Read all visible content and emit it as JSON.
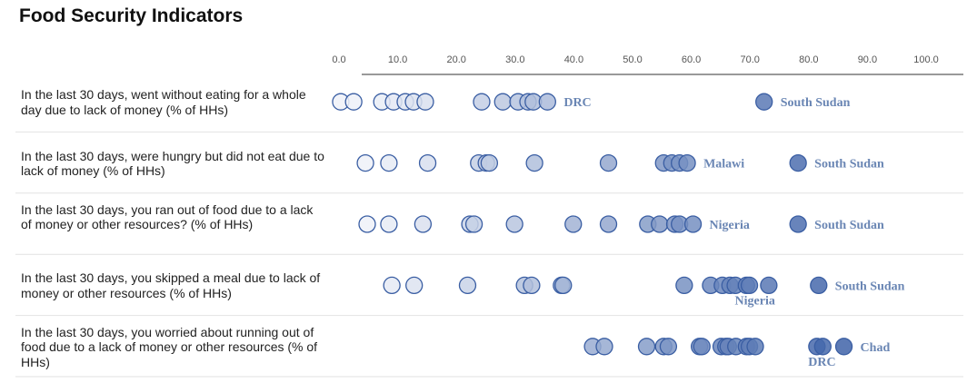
{
  "chart_data": {
    "type": "scatter",
    "title": "Food Security Indicators",
    "xlim": [
      0,
      100
    ],
    "ticks": [
      "0.0",
      "10.0",
      "20.0",
      "30.0",
      "40.0",
      "50.0",
      "60.0",
      "70.0",
      "80.0",
      "90.0",
      "100.0"
    ],
    "tick_values": [
      0,
      10,
      20,
      30,
      40,
      50,
      60,
      70,
      80,
      90,
      100
    ],
    "color_scale": {
      "low": "#eef1f8",
      "high": "#3f63a8",
      "stroke": "#3a5ea3"
    },
    "rows": [
      {
        "label": "In the last 30 days, went without eating for a whole day due to lack of money (% of HHs)",
        "values": [
          0.3,
          2.5,
          7.3,
          9.3,
          11.3,
          12.7,
          14.7,
          24.3,
          27.9,
          30.5,
          32.2,
          33.1,
          35.5,
          72.4
        ],
        "annotations": [
          {
            "text": "DRC",
            "x": 35.5
          },
          {
            "text": "South Sudan",
            "x": 72.4
          }
        ]
      },
      {
        "label": "In the last 30 days, were hungry but did not eat due to lack of money (% of HHs)",
        "values": [
          4.5,
          8.5,
          15.1,
          23.8,
          25.1,
          25.6,
          33.3,
          45.9,
          55.3,
          56.7,
          58.0,
          59.3,
          78.2
        ],
        "annotations": [
          {
            "text": "Malawi",
            "x": 59.3
          },
          {
            "text": "South Sudan",
            "x": 78.2
          }
        ]
      },
      {
        "label": "In the last 30 days, you ran out of food due to a lack of money or other resources? (% of HHs)",
        "values": [
          4.8,
          8.5,
          14.3,
          22.3,
          23.0,
          29.9,
          39.9,
          45.9,
          52.6,
          54.6,
          57.2,
          58.0,
          60.3,
          78.2
        ],
        "annotations": [
          {
            "text": "Nigeria",
            "x": 60.3
          },
          {
            "text": "South Sudan",
            "x": 78.2
          }
        ]
      },
      {
        "label": "In the last 30 days, you skipped a meal due to lack of money or other resources (% of HHs)",
        "values": [
          9.0,
          12.8,
          21.9,
          31.6,
          32.8,
          37.9,
          38.2,
          58.8,
          63.3,
          65.3,
          66.6,
          67.5,
          69.4,
          69.9,
          73.2,
          81.7
        ],
        "annotations": [
          {
            "text": "South Sudan",
            "x": 81.7
          },
          {
            "text": "Nigeria",
            "x": 69.9,
            "below": true
          }
        ]
      },
      {
        "label": "In the last 30 days, you worried about running out of food due to a lack of money or other resources (% of HHs)",
        "values": [
          43.2,
          45.2,
          52.4,
          55.3,
          56.1,
          61.4,
          61.8,
          65.1,
          65.9,
          66.3,
          67.6,
          69.4,
          69.9,
          70.9,
          81.4,
          82.4,
          86.0
        ],
        "annotations": [
          {
            "text": "Chad",
            "x": 86.0
          },
          {
            "text": "DRC",
            "x": 82.4,
            "below": true
          }
        ]
      }
    ]
  }
}
